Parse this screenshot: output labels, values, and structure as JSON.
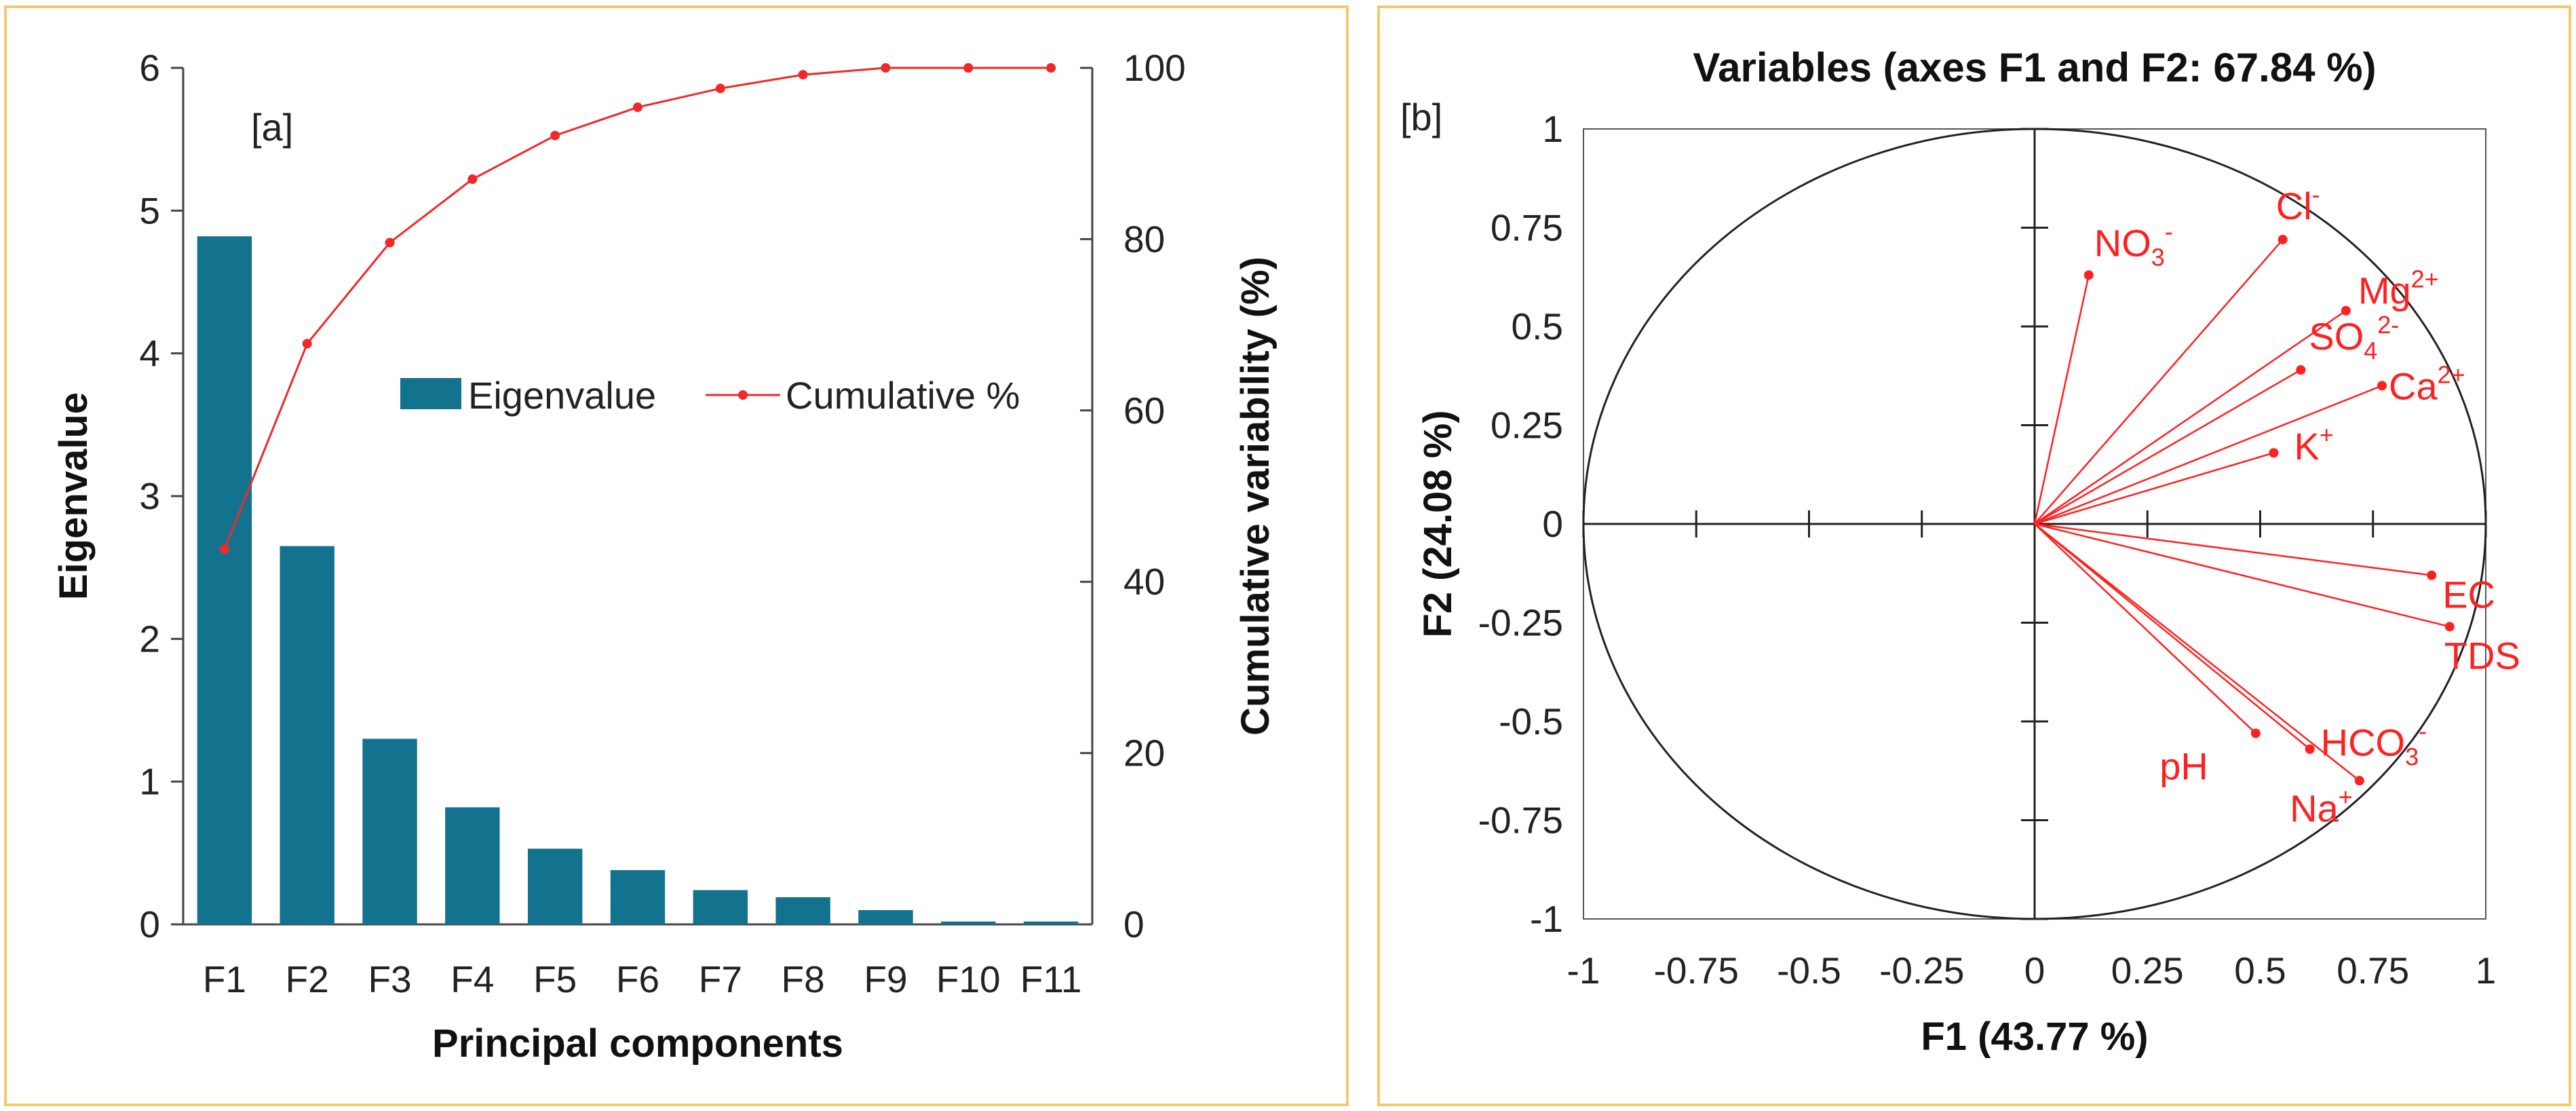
{
  "colors": {
    "bar": "#13738f",
    "line": "#f02828",
    "vector": "#ff2020",
    "frame": "#f2c96b"
  },
  "panel_a": {
    "tag": "[a]",
    "legend": {
      "bar_label": "Eigenvalue",
      "line_label": "Cumulative %"
    }
  },
  "panel_b": {
    "tag": "[b]"
  },
  "chart_data": [
    {
      "type": "bar",
      "title": "",
      "xlabel": "Principal components",
      "ylabel": "Eigenvalue",
      "y2label": "Cumulative variability (%)",
      "categories": [
        "F1",
        "F2",
        "F3",
        "F4",
        "F5",
        "F6",
        "F7",
        "F8",
        "F9",
        "F10",
        "F11"
      ],
      "ylim": [
        0,
        6
      ],
      "y2lim": [
        0,
        100
      ],
      "yticks": [
        "0",
        "1",
        "2",
        "3",
        "4",
        "5",
        "6"
      ],
      "y2ticks": [
        "0",
        "20",
        "40",
        "60",
        "80",
        "100"
      ],
      "series": [
        {
          "name": "Eigenvalue",
          "axis": "left",
          "kind": "bar",
          "values": [
            4.82,
            2.65,
            1.3,
            0.82,
            0.53,
            0.38,
            0.24,
            0.19,
            0.1,
            0.02,
            0.02
          ]
        },
        {
          "name": "Cumulative %",
          "axis": "right",
          "kind": "line",
          "values": [
            43.8,
            67.8,
            79.6,
            87.0,
            92.1,
            95.4,
            97.6,
            99.2,
            100,
            100,
            100
          ]
        }
      ],
      "legend": "center-right"
    },
    {
      "type": "scatter",
      "title": "Variables (axes F1 and F2: 67.84 %)",
      "xlabel": "F1 (43.77 %)",
      "ylabel": "F2 (24.08 %)",
      "xlim": [
        -1,
        1
      ],
      "ylim": [
        -1,
        1
      ],
      "xticks": [
        "-1",
        "-0.75",
        "-0.5",
        "-0.25",
        "0",
        "0.25",
        "0.5",
        "0.75",
        "1"
      ],
      "yticks": [
        "1",
        "0.75",
        "0.5",
        "0.25",
        "0",
        "-0.25",
        "-0.5",
        "-0.75",
        "-1"
      ],
      "points": [
        {
          "name": "NO3-",
          "base": "NO",
          "sub": "3",
          "sup": "-",
          "x": 0.12,
          "y": 0.63
        },
        {
          "name": "Cl-",
          "base": "Cl",
          "sub": "",
          "sup": "-",
          "x": 0.55,
          "y": 0.72
        },
        {
          "name": "Mg2+",
          "base": "Mg",
          "sub": "",
          "sup": "2+",
          "x": 0.69,
          "y": 0.54
        },
        {
          "name": "SO42-",
          "base": "SO",
          "sub": "4",
          "sup": "2-",
          "x": 0.59,
          "y": 0.39
        },
        {
          "name": "Ca2+",
          "base": "Ca",
          "sub": "",
          "sup": "2+",
          "x": 0.77,
          "y": 0.35
        },
        {
          "name": "K+",
          "base": "K",
          "sub": "",
          "sup": "+",
          "x": 0.53,
          "y": 0.18
        },
        {
          "name": "EC",
          "base": "EC",
          "sub": "",
          "sup": "",
          "x": 0.88,
          "y": -0.13
        },
        {
          "name": "TDS",
          "base": "TDS",
          "sub": "",
          "sup": "",
          "x": 0.92,
          "y": -0.26
        },
        {
          "name": "pH",
          "base": "pH",
          "sub": "",
          "sup": "",
          "x": 0.49,
          "y": -0.53
        },
        {
          "name": "HCO3-",
          "base": "HCO",
          "sub": "3",
          "sup": "-",
          "x": 0.61,
          "y": -0.57
        },
        {
          "name": "Na+",
          "base": "Na",
          "sub": "",
          "sup": "+",
          "x": 0.72,
          "y": -0.65
        }
      ]
    }
  ]
}
